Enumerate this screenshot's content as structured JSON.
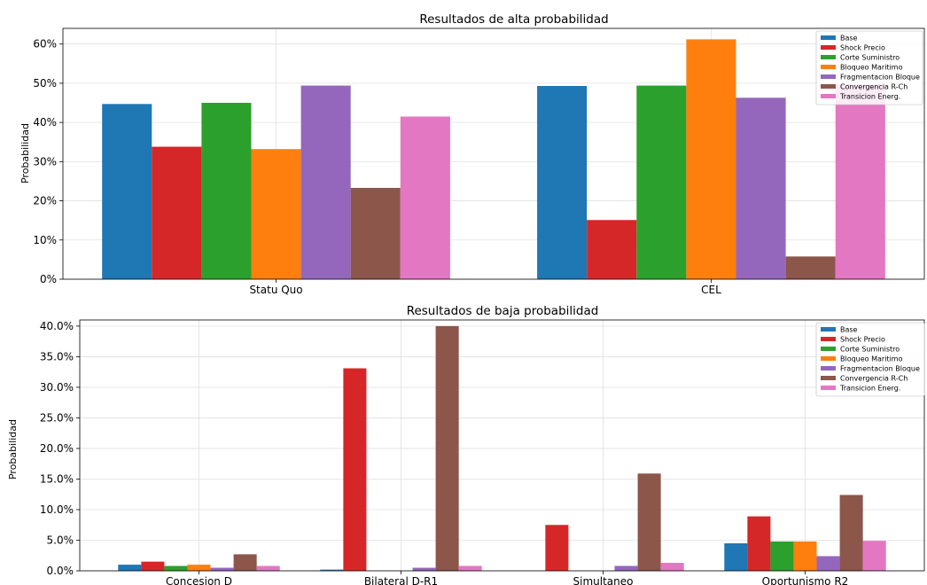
{
  "colors": {
    "Base": "#1f77b4",
    "Shock Precio": "#d62728",
    "Corte Suministro": "#2ca02c",
    "Bloqueo Maritimo": "#ff7f0e",
    "Fragmentacion Bloque": "#9467bd",
    "Convergencia R-Ch": "#8c564b",
    "Transicion Energ.": "#e377c2"
  },
  "chart_data": [
    {
      "type": "bar",
      "title": "Resultados de alta probabilidad",
      "ylabel": "Probabilidad",
      "xlabel": "",
      "categories": [
        "Statu Quo",
        "CEL"
      ],
      "ylim": [
        0,
        0.64
      ],
      "yticks": [
        0,
        0.1,
        0.2,
        0.3,
        0.4,
        0.5,
        0.6
      ],
      "ytick_labels": [
        "0%",
        "10%",
        "20%",
        "30%",
        "40%",
        "50%",
        "60%"
      ],
      "grid": true,
      "legend_position": "top-right",
      "series": [
        {
          "name": "Base",
          "values": [
            0.447,
            0.493
          ]
        },
        {
          "name": "Shock Precio",
          "values": [
            0.338,
            0.151
          ]
        },
        {
          "name": "Corte Suministro",
          "values": [
            0.45,
            0.494
          ]
        },
        {
          "name": "Bloqueo Maritimo",
          "values": [
            0.332,
            0.612
          ]
        },
        {
          "name": "Fragmentacion Bloque",
          "values": [
            0.494,
            0.463
          ]
        },
        {
          "name": "Convergencia R-Ch",
          "values": [
            0.233,
            0.058
          ]
        },
        {
          "name": "Transicion Energ.",
          "values": [
            0.415,
            0.497
          ]
        }
      ]
    },
    {
      "type": "bar",
      "title": "Resultados de baja probabilidad",
      "ylabel": "Probabilidad",
      "xlabel": "",
      "categories": [
        "Concesion D",
        "Bilateral D-R1",
        "Simultaneo",
        "Oportunismo R2"
      ],
      "ylim": [
        0,
        0.41
      ],
      "yticks": [
        0,
        0.05,
        0.1,
        0.15,
        0.2,
        0.25,
        0.3,
        0.35,
        0.4
      ],
      "ytick_labels": [
        "0.0%",
        "5.0%",
        "10.0%",
        "15.0%",
        "20.0%",
        "25.0%",
        "30.0%",
        "35.0%",
        "40.0%"
      ],
      "grid": true,
      "legend_position": "top-right",
      "series": [
        {
          "name": "Base",
          "values": [
            0.01,
            0.002,
            0.0,
            0.045
          ]
        },
        {
          "name": "Shock Precio",
          "values": [
            0.015,
            0.331,
            0.075,
            0.089
          ]
        },
        {
          "name": "Corte Suministro",
          "values": [
            0.008,
            0.0,
            0.0,
            0.048
          ]
        },
        {
          "name": "Bloqueo Maritimo",
          "values": [
            0.01,
            0.0,
            0.0,
            0.048
          ]
        },
        {
          "name": "Fragmentacion Bloque",
          "values": [
            0.005,
            0.005,
            0.008,
            0.024
          ]
        },
        {
          "name": "Convergencia R-Ch",
          "values": [
            0.027,
            0.4,
            0.159,
            0.124
          ]
        },
        {
          "name": "Transicion Energ.",
          "values": [
            0.008,
            0.008,
            0.013,
            0.049
          ]
        }
      ]
    }
  ]
}
